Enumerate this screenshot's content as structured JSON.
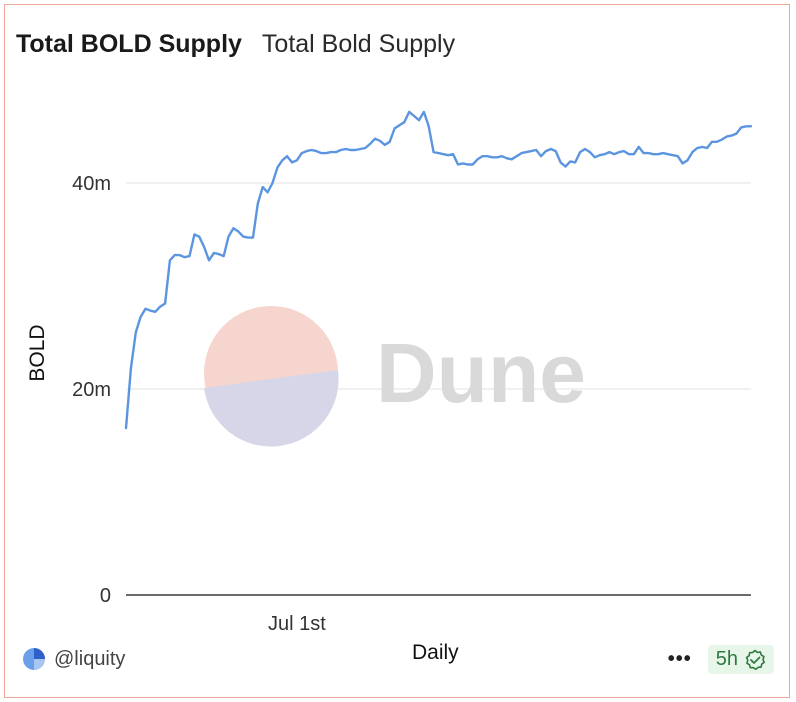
{
  "header": {
    "title": "Total BOLD Supply",
    "subtitle": "Total Bold Supply"
  },
  "footer": {
    "owner": "@liquity",
    "more_icon": "more-dots-icon",
    "freshness": "5h",
    "freshness_icon": "verified-check-icon"
  },
  "watermark": "Dune",
  "colors": {
    "line": "#5b95e0",
    "border": "#eba899",
    "badge_bg": "#e8f6ea",
    "badge_text": "#2d7a43"
  },
  "chart_data": {
    "type": "line",
    "xlabel": "Daily",
    "ylabel": "BOLD",
    "ylim": [
      0,
      50000000
    ],
    "yticks": [
      {
        "value": 0,
        "label": "0"
      },
      {
        "value": 20000000,
        "label": "20m"
      },
      {
        "value": 40000000,
        "label": "40m"
      }
    ],
    "xticks": [
      {
        "value": 35,
        "label": "Jul 1st"
      }
    ],
    "grid": true,
    "series": [
      {
        "values": [
          16.2,
          22.0,
          25.5,
          27.0,
          27.8,
          27.6,
          27.5,
          28.0,
          28.3,
          32.5,
          33.0,
          33.0,
          32.8,
          32.9,
          35.0,
          34.8,
          33.8,
          32.5,
          33.2,
          33.1,
          32.9,
          34.8,
          35.6,
          35.3,
          34.8,
          34.7,
          34.7,
          38.0,
          39.6,
          39.1,
          40.0,
          41.5,
          42.2,
          42.6,
          42.0,
          42.2,
          42.9,
          43.1,
          43.2,
          43.1,
          42.9,
          42.9,
          43.0,
          43.0,
          43.2,
          43.3,
          43.2,
          43.2,
          43.3,
          43.4,
          43.8,
          44.3,
          44.1,
          43.7,
          44.0,
          45.3,
          45.6,
          45.9,
          46.9,
          46.5,
          46.1,
          46.9,
          45.5,
          43.0,
          42.9,
          42.8,
          42.7,
          42.8,
          41.8,
          41.9,
          41.8,
          41.8,
          42.3,
          42.6,
          42.6,
          42.5,
          42.5,
          42.6,
          42.4,
          42.3,
          42.6,
          42.9,
          43.0,
          43.1,
          43.2,
          42.6,
          43.1,
          43.3,
          43.1,
          42.0,
          41.6,
          42.1,
          42.0,
          43.0,
          43.3,
          43.0,
          42.5,
          42.7,
          42.8,
          43.0,
          42.8,
          43.0,
          43.1,
          42.8,
          42.8,
          43.5,
          42.9,
          42.9,
          42.8,
          42.8,
          42.9,
          42.8,
          42.7,
          42.6,
          41.9,
          42.2,
          43.0,
          43.4,
          43.5,
          43.4,
          44.0,
          44.0,
          44.2,
          44.5,
          44.6,
          44.8,
          45.4,
          45.5,
          45.5
        ]
      }
    ]
  }
}
